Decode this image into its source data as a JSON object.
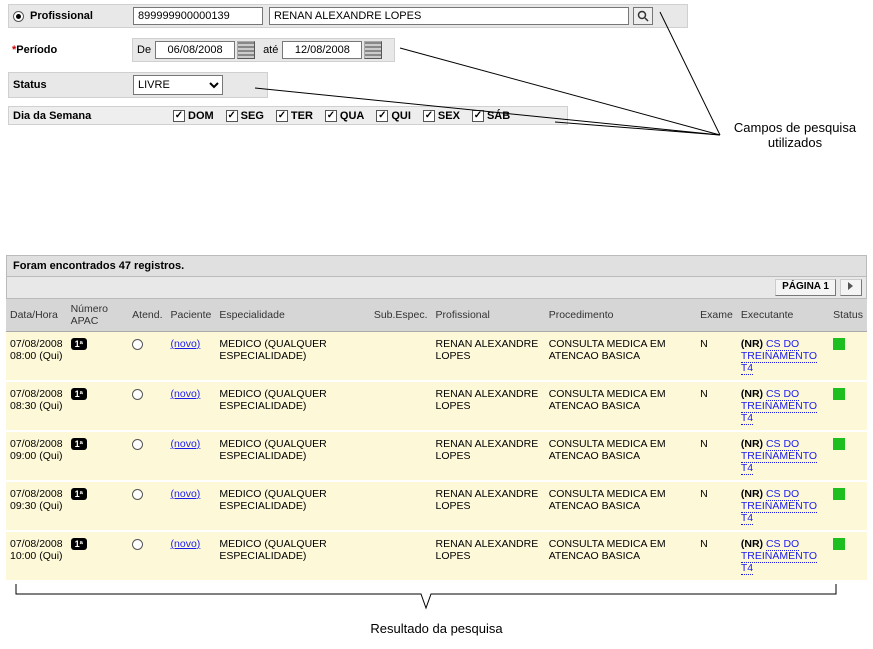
{
  "filters": {
    "profissional_label": "Profissional",
    "profissional_code": "899999900000139",
    "profissional_name": "RENAN ALEXANDRE LOPES",
    "periodo_label": "Período",
    "periodo_de": "De",
    "periodo_ate": "até",
    "date_from": "06/08/2008",
    "date_to": "12/08/2008",
    "status_label": "Status",
    "status_value": "LIVRE",
    "dia_semana_label": "Dia da Semana",
    "days": [
      "DOM",
      "SEG",
      "TER",
      "QUA",
      "QUI",
      "SEX",
      "SÁB"
    ]
  },
  "annotations": {
    "top": "Campos de pesquisa utilizados",
    "bottom": "Resultado da pesquisa"
  },
  "results": {
    "count_text": "Foram encontrados 47 registros.",
    "page_label": "PÁGINA 1",
    "columns": [
      "Data/Hora",
      "Número APAC",
      "Atend.",
      "Paciente",
      "Especialidade",
      "Sub.Espec.",
      "Profissional",
      "Procedimento",
      "Exame",
      "Executante",
      "Status"
    ],
    "novo_label": "(novo)",
    "badge": "1ª",
    "exec_prefix": "(NR)",
    "exec_line1": "CS DO",
    "exec_line2": "TREINAMENTO T4",
    "rows": [
      {
        "date": "07/08/2008",
        "time": "08:00 (Qui)",
        "esp": "MEDICO (QUALQUER ESPECIALIDADE)",
        "prof": "RENAN ALEXANDRE LOPES",
        "proc": "CONSULTA MEDICA EM ATENCAO BASICA",
        "exame": "N"
      },
      {
        "date": "07/08/2008",
        "time": "08:30 (Qui)",
        "esp": "MEDICO (QUALQUER ESPECIALIDADE)",
        "prof": "RENAN ALEXANDRE LOPES",
        "proc": "CONSULTA MEDICA EM ATENCAO BASICA",
        "exame": "N"
      },
      {
        "date": "07/08/2008",
        "time": "09:00 (Qui)",
        "esp": "MEDICO (QUALQUER ESPECIALIDADE)",
        "prof": "RENAN ALEXANDRE LOPES",
        "proc": "CONSULTA MEDICA EM ATENCAO BASICA",
        "exame": "N"
      },
      {
        "date": "07/08/2008",
        "time": "09:30 (Qui)",
        "esp": "MEDICO (QUALQUER ESPECIALIDADE)",
        "prof": "RENAN ALEXANDRE LOPES",
        "proc": "CONSULTA MEDICA EM ATENCAO BASICA",
        "exame": "N"
      },
      {
        "date": "07/08/2008",
        "time": "10:00 (Qui)",
        "esp": "MEDICO (QUALQUER ESPECIALIDADE)",
        "prof": "RENAN ALEXANDRE LOPES",
        "proc": "CONSULTA MEDICA EM ATENCAO BASICA",
        "exame": "N"
      }
    ]
  },
  "colors": {
    "row_bg": "#fdf9d8",
    "header_bg": "#d6d6d6",
    "status_green": "#1fbf1f",
    "link_blue": "#1a1aee"
  }
}
